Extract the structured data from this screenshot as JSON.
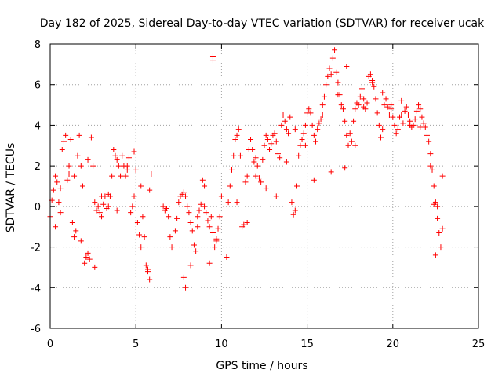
{
  "chart_data": {
    "type": "scatter",
    "title": "Day 182 of 2025, Sidereal Day-to-day VTEC variation (SDTVAR) for receiver ucak",
    "xlabel": "GPS time / hours",
    "ylabel": "SDTVAR / TECUs",
    "xlim": [
      0,
      25
    ],
    "ylim": [
      -6,
      8
    ],
    "xticks": [
      0,
      5,
      10,
      15,
      20,
      25
    ],
    "yticks": [
      -6,
      -4,
      -2,
      0,
      2,
      4,
      6,
      8
    ],
    "grid": true,
    "marker": "+",
    "color": "#ff0000",
    "series": [
      {
        "name": "SDTVAR",
        "x": [
          0.0,
          0.1,
          0.2,
          0.3,
          0.4,
          0.5,
          0.6,
          0.7,
          0.8,
          0.9,
          1.0,
          1.1,
          1.2,
          1.3,
          1.4,
          1.5,
          1.6,
          1.7,
          1.8,
          1.9,
          2.0,
          2.1,
          2.2,
          2.3,
          2.4,
          2.5,
          2.6,
          2.7,
          2.8,
          2.9,
          3.0,
          3.1,
          3.2,
          3.3,
          3.4,
          3.5,
          3.6,
          3.7,
          3.8,
          3.9,
          4.0,
          4.1,
          4.2,
          4.3,
          4.4,
          4.5,
          4.6,
          4.7,
          4.8,
          4.9,
          5.0,
          5.1,
          5.2,
          5.3,
          5.4,
          5.5,
          5.6,
          5.7,
          5.8,
          5.9,
          6.6,
          6.7,
          6.8,
          6.9,
          7.0,
          7.1,
          7.3,
          7.4,
          7.5,
          7.6,
          7.7,
          7.8,
          7.9,
          8.0,
          8.1,
          8.2,
          8.3,
          8.4,
          8.5,
          8.6,
          8.7,
          8.8,
          8.9,
          9.0,
          9.1,
          9.2,
          9.3,
          9.4,
          9.5,
          9.6,
          9.7,
          9.8,
          9.9,
          10.0,
          10.4,
          10.5,
          10.6,
          10.7,
          10.8,
          10.9,
          11.0,
          11.1,
          11.2,
          11.3,
          11.4,
          11.5,
          11.6,
          11.7,
          11.8,
          11.9,
          12.0,
          12.1,
          12.2,
          12.3,
          12.4,
          12.5,
          12.6,
          12.7,
          12.8,
          12.9,
          13.0,
          13.1,
          13.2,
          13.3,
          13.4,
          13.5,
          13.6,
          13.7,
          13.8,
          13.9,
          14.0,
          14.1,
          14.2,
          14.3,
          14.4,
          14.5,
          14.6,
          14.7,
          14.8,
          14.9,
          15.0,
          15.1,
          15.2,
          15.3,
          15.4,
          15.5,
          15.6,
          15.7,
          15.8,
          15.9,
          16.0,
          16.1,
          16.2,
          16.3,
          16.4,
          16.5,
          16.6,
          16.7,
          16.8,
          16.9,
          17.0,
          17.1,
          17.2,
          17.3,
          17.4,
          17.5,
          17.6,
          17.7,
          17.8,
          17.9,
          18.0,
          18.1,
          18.2,
          18.3,
          18.4,
          18.5,
          18.6,
          18.7,
          18.8,
          18.9,
          19.0,
          19.1,
          19.2,
          19.3,
          19.4,
          19.5,
          19.6,
          19.7,
          19.8,
          19.9,
          20.0,
          20.1,
          20.2,
          20.3,
          20.4,
          20.5,
          20.6,
          20.7,
          20.8,
          20.9,
          21.0,
          21.1,
          21.2,
          21.3,
          21.4,
          21.5,
          21.6,
          21.7,
          21.8,
          21.9,
          22.0,
          22.1,
          22.2,
          22.3,
          22.4,
          22.5,
          22.6,
          22.7,
          22.8,
          22.9,
          0.3,
          0.6,
          1.1,
          1.4,
          1.8,
          2.2,
          2.6,
          3.0,
          3.4,
          3.9,
          4.5,
          4.9,
          5.3,
          5.7,
          7.8,
          8.2,
          8.6,
          9.0,
          9.3,
          9.7,
          10.3,
          10.9,
          11.5,
          12.0,
          12.6,
          13.2,
          13.8,
          14.3,
          14.9,
          15.4,
          15.9,
          16.4,
          16.8,
          17.3,
          17.8,
          18.3,
          18.8,
          19.4,
          19.9,
          20.5,
          21.0,
          21.6,
          22.2,
          22.6,
          9.5,
          9.5,
          5.8,
          7.9,
          17.2,
          22.4,
          22.5,
          22.9
        ],
        "y": [
          -0.5,
          0.3,
          0.8,
          1.5,
          1.2,
          0.2,
          0.9,
          2.8,
          3.2,
          3.5,
          1.3,
          2.0,
          3.3,
          -0.8,
          -1.5,
          -1.2,
          2.5,
          3.5,
          2.0,
          1.0,
          -2.8,
          -2.5,
          -2.3,
          -2.6,
          3.4,
          2.0,
          0.2,
          -0.2,
          0.0,
          -0.3,
          0.5,
          0.1,
          0.5,
          -0.1,
          0.6,
          0.5,
          1.5,
          2.8,
          2.5,
          2.3,
          2.0,
          1.5,
          2.5,
          2.0,
          1.5,
          1.8,
          2.4,
          -0.3,
          0.0,
          0.5,
          1.8,
          -0.8,
          -1.4,
          -2.0,
          -0.5,
          -1.5,
          -2.9,
          -3.2,
          0.8,
          1.6,
          0.0,
          -0.2,
          -0.1,
          -0.5,
          -1.5,
          -2.0,
          -1.2,
          -0.6,
          0.2,
          0.5,
          0.6,
          0.7,
          0.5,
          0.0,
          -0.3,
          -0.8,
          -1.2,
          -1.9,
          -2.2,
          -0.5,
          -0.2,
          0.1,
          1.3,
          1.0,
          -0.3,
          -0.7,
          -1.0,
          -0.5,
          -1.3,
          -2.0,
          -1.7,
          -1.1,
          -0.5,
          0.5,
          0.2,
          1.0,
          1.8,
          2.5,
          3.3,
          3.5,
          3.8,
          2.5,
          -1.0,
          -0.9,
          1.2,
          1.5,
          2.8,
          3.3,
          2.8,
          2.2,
          2.4,
          2.0,
          1.4,
          1.2,
          2.3,
          3.0,
          3.5,
          3.3,
          2.8,
          3.1,
          3.5,
          3.6,
          3.2,
          2.6,
          2.4,
          4.0,
          4.5,
          4.2,
          3.8,
          3.6,
          4.4,
          0.2,
          -0.4,
          -0.2,
          1.0,
          2.5,
          3.0,
          3.3,
          3.6,
          4.0,
          4.6,
          4.8,
          4.6,
          4.0,
          3.5,
          3.2,
          3.8,
          4.1,
          4.3,
          5.0,
          5.4,
          6.0,
          6.4,
          6.8,
          6.5,
          7.3,
          7.7,
          6.6,
          6.1,
          5.5,
          5.0,
          4.8,
          4.2,
          3.5,
          3.0,
          3.6,
          3.2,
          4.2,
          4.8,
          5.1,
          5.0,
          5.4,
          5.8,
          5.3,
          4.8,
          5.1,
          6.4,
          6.5,
          6.1,
          5.9,
          5.3,
          4.6,
          4.0,
          3.4,
          3.8,
          5.0,
          5.3,
          4.9,
          4.5,
          5.0,
          4.4,
          4.0,
          3.6,
          3.8,
          4.4,
          4.5,
          4.1,
          4.7,
          4.9,
          4.5,
          4.2,
          3.9,
          4.0,
          4.3,
          4.7,
          5.0,
          4.8,
          4.4,
          4.1,
          3.9,
          3.5,
          3.2,
          2.6,
          1.8,
          1.0,
          0.2,
          -0.6,
          -1.3,
          -2.0,
          1.5,
          -1.0,
          -0.3,
          1.6,
          1.5,
          -1.7,
          2.3,
          -3.0,
          -0.5,
          0.0,
          -0.2,
          2.0,
          2.7,
          1.0,
          -3.1,
          -3.5,
          -2.9,
          -1.0,
          0.0,
          -2.8,
          -1.6,
          -2.5,
          0.2,
          -0.8,
          1.5,
          0.9,
          0.5,
          2.2,
          3.8,
          3.0,
          1.3,
          4.5,
          1.7,
          5.5,
          6.9,
          3.0,
          4.9,
          6.2,
          5.6,
          4.8,
          5.2,
          4.0,
          3.9,
          2.0,
          0.0,
          7.4,
          7.2,
          -3.6,
          -4.0,
          1.9,
          0.1,
          -2.4,
          -1.1
        ]
      }
    ]
  }
}
